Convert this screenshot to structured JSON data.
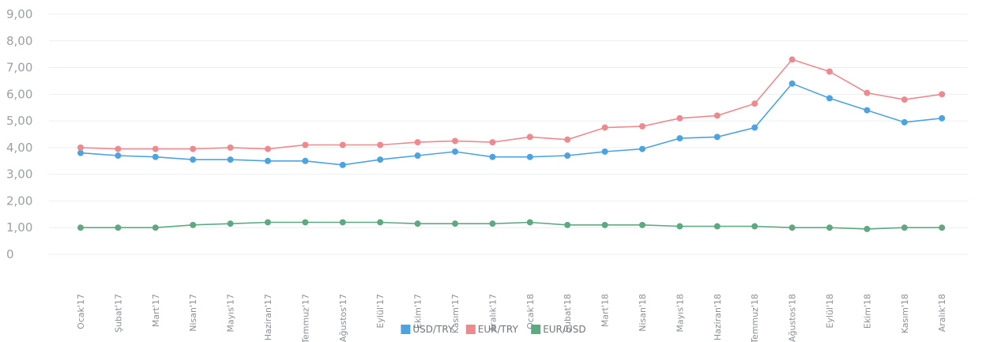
{
  "chart_data": {
    "type": "line",
    "categories": [
      "Ocak'17",
      "Şubat'17",
      "Mart'17",
      "Nisan'17",
      "Mayıs'17",
      "Haziran'17",
      "Temmuz'17",
      "Ağustos'17",
      "Eylül'17",
      "Ekim'17",
      "Kasım'17",
      "Aralık'17",
      "Ocak'18",
      "Şubat'18",
      "Mart'18",
      "Nisan'18",
      "Mayıs'18",
      "Haziran'18",
      "Temmuz'18",
      "Ağustos'18",
      "Eylül'18",
      "Ekim'18",
      "Kasım'18",
      "Aralık'18"
    ],
    "y_ticks": [
      "0",
      "1,00",
      "2,00",
      "3,00",
      "4,00",
      "5,00",
      "6,00",
      "7,00",
      "8,00",
      "9,00"
    ],
    "ylim": [
      0,
      9
    ],
    "grid": true,
    "legend_position": "bottom",
    "series": [
      {
        "name": "USD/TRY",
        "color": "#4da3e0",
        "values": [
          3.8,
          3.7,
          3.65,
          3.55,
          3.55,
          3.5,
          3.5,
          3.35,
          3.55,
          3.7,
          3.85,
          3.65,
          3.65,
          3.7,
          3.85,
          3.95,
          4.35,
          4.4,
          4.75,
          6.4,
          5.85,
          5.4,
          4.95,
          5.1
        ]
      },
      {
        "name": "EUR/TRY",
        "color": "#ec8a8f",
        "values": [
          4.0,
          3.95,
          3.95,
          3.95,
          4.0,
          3.95,
          4.1,
          4.1,
          4.1,
          4.2,
          4.25,
          4.2,
          4.4,
          4.3,
          4.75,
          4.8,
          5.1,
          5.2,
          5.65,
          7.3,
          6.85,
          6.05,
          5.8,
          6.0
        ]
      },
      {
        "name": "EUR/USD",
        "color": "#5ea882",
        "values": [
          1.0,
          1.0,
          1.0,
          1.1,
          1.15,
          1.2,
          1.2,
          1.2,
          1.2,
          1.15,
          1.15,
          1.15,
          1.2,
          1.1,
          1.1,
          1.1,
          1.05,
          1.05,
          1.05,
          1.0,
          1.0,
          0.95,
          1.0,
          1.0
        ]
      }
    ]
  }
}
